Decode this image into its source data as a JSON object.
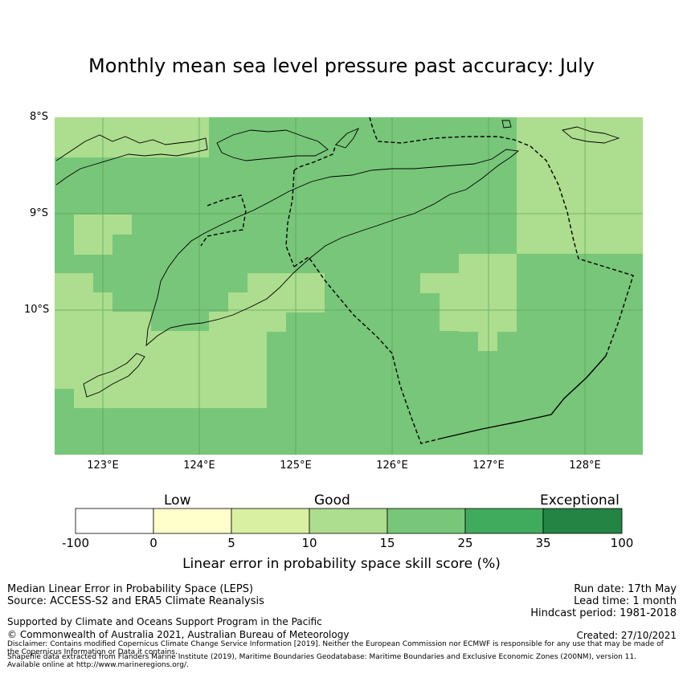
{
  "title": "Monthly mean sea level pressure past accuracy: July",
  "map": {
    "lat_labels": [
      "8°S",
      "9°S",
      "10°S"
    ],
    "lon_labels": [
      "123°E",
      "124°E",
      "125°E",
      "126°E",
      "127°E",
      "128°E"
    ],
    "colors": {
      "cat_10_15": "#addd8e",
      "cat_15_25": "#78c679",
      "cat_5_10": "#d9f0a3",
      "gridline": "#5aa05a",
      "coast": "#000000"
    }
  },
  "colorbar": {
    "category_labels": [
      "Low",
      "Good",
      "Exceptional"
    ],
    "tick_labels": [
      "-100",
      "0",
      "5",
      "10",
      "15",
      "25",
      "35",
      "100"
    ],
    "colors": [
      "#ffffff",
      "#ffffcc",
      "#d9f0a3",
      "#addd8e",
      "#78c679",
      "#41ab5d",
      "#238443"
    ],
    "title": "Linear error in probability space skill score (%)"
  },
  "footer": {
    "method": "Median Linear Error in Probability Space (LEPS)",
    "source": "Source: ACCESS-S2 and ERA5 Climate Reanalysis",
    "run_date": "Run date: 17th May",
    "lead_time": "Lead time: 1 month",
    "hindcast": "Hindcast period: 1981-2018",
    "support": "Supported by Climate and Oceans Support Program in the Pacific",
    "copyright": "© Commonwealth of Australia 2021, Australian Bureau of Meteorology",
    "created": "Created: 27/10/2021",
    "disclaimer_1": "Disclaimer: Contains modified Copernicus Climate Change Service Information [2019]. Neither the European Commission nor ECMWF is responsible for any use that may be made of",
    "disclaimer_2": "the Copernicus Information or Data it contains.",
    "shapefile_1": "Shapefile data extracted from Flanders Marine Institute (2019), Maritime Boundaries Geodatabase: Maritime Boundaries and Exclusive Economic Zones (200NM), version 11.",
    "shapefile_2": "Available online at http://www.marineregions.org/."
  }
}
